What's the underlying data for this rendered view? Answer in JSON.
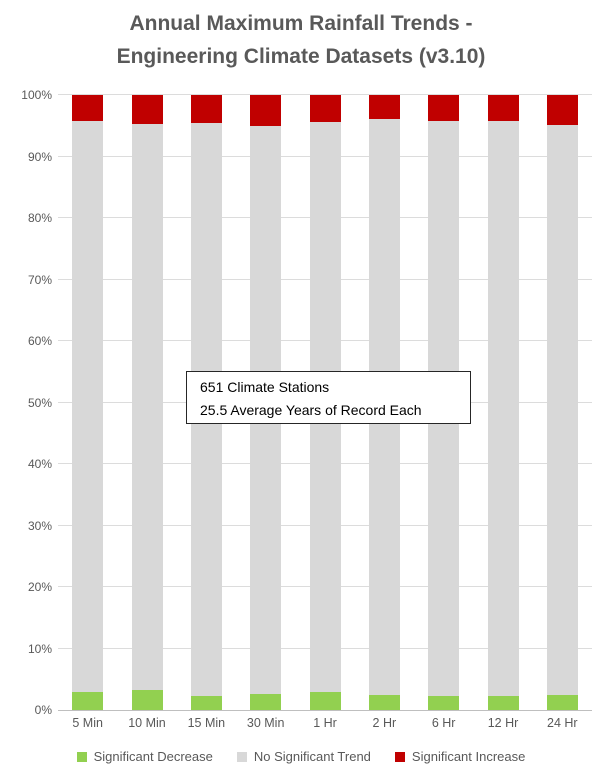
{
  "title": {
    "line1": "Annual Maximum Rainfall Trends -",
    "line2": "Engineering Climate Datasets (v3.10)"
  },
  "annotation": {
    "line1": "651 Climate Stations",
    "line2": "25.5 Average Years of Record Each"
  },
  "chart_data": {
    "type": "bar",
    "stacked": true,
    "percent_stacked": true,
    "title": "Annual Maximum Rainfall Trends - Engineering Climate Datasets (v3.10)",
    "categories": [
      "5 Min",
      "10 Min",
      "15 Min",
      "30 Min",
      "1 Hr",
      "2 Hr",
      "6 Hr",
      "12 Hr",
      "24 Hr"
    ],
    "series": [
      {
        "name": "Significant Decrease",
        "color": "#92D050",
        "values": [
          3.0,
          3.2,
          2.2,
          2.6,
          3.0,
          2.5,
          2.3,
          2.3,
          2.4
        ]
      },
      {
        "name": "No Significant Trend",
        "color": "#D8D8D8",
        "values": [
          92.7,
          92.1,
          93.3,
          92.4,
          92.6,
          93.6,
          93.5,
          93.5,
          92.8
        ]
      },
      {
        "name": "Significant Increase",
        "color": "#C00000",
        "values": [
          4.3,
          4.7,
          4.5,
          5.0,
          4.4,
          3.9,
          4.2,
          4.2,
          4.8
        ]
      }
    ],
    "xlabel": "",
    "ylabel": "",
    "ylim": [
      0,
      100
    ],
    "ytick_labels": [
      "0%",
      "10%",
      "20%",
      "30%",
      "40%",
      "50%",
      "60%",
      "70%",
      "80%",
      "90%",
      "100%"
    ],
    "grid": true,
    "gridline_color": "#DCDCDC",
    "axis_line_color": "#BFBFBF",
    "legend_position": "bottom",
    "annotation": "651 Climate Stations\n25.5 Average Years of Record Each"
  },
  "colors": {
    "decrease": "#92D050",
    "no_trend": "#D8D8D8",
    "increase": "#C00000",
    "title_text": "#595959",
    "axis_text": "#595959"
  }
}
